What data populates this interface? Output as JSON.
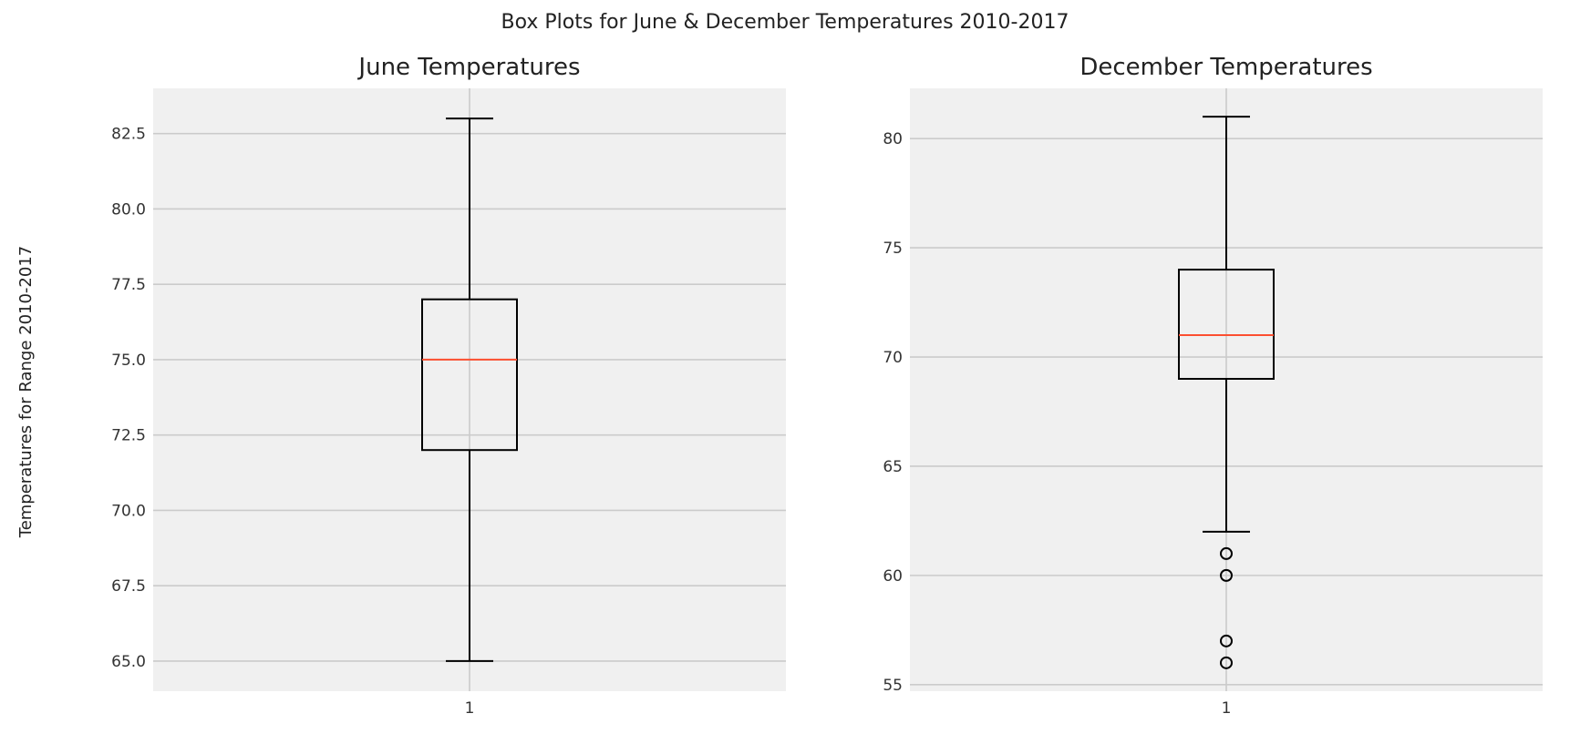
{
  "figure": {
    "suptitle": "Box Plots for June & December Temperatures 2010-2017",
    "ylabel": "Temperatures for Range 2010-2017"
  },
  "colors": {
    "panel_background": "#f0f0f0",
    "grid": "#cbcbcb",
    "box": "#000000",
    "median": "#fc4f30"
  },
  "chart_data": [
    {
      "type": "box",
      "title": "June Temperatures",
      "categories": [
        "1"
      ],
      "ylim": [
        64,
        84
      ],
      "yticks": [
        65.0,
        67.5,
        70.0,
        72.5,
        75.0,
        77.5,
        80.0,
        82.5
      ],
      "ytick_labels": [
        "65.0",
        "67.5",
        "70.0",
        "72.5",
        "75.0",
        "77.5",
        "80.0",
        "82.5"
      ],
      "grid": true,
      "boxes": [
        {
          "label": "1",
          "whislo": 65,
          "q1": 72,
          "med": 75,
          "q3": 77,
          "whishi": 83,
          "fliers": []
        }
      ]
    },
    {
      "type": "box",
      "title": "December Temperatures",
      "categories": [
        "1"
      ],
      "ylim": [
        54.7,
        82.3
      ],
      "yticks": [
        55,
        60,
        65,
        70,
        75,
        80
      ],
      "ytick_labels": [
        "55",
        "60",
        "65",
        "70",
        "75",
        "80"
      ],
      "grid": true,
      "boxes": [
        {
          "label": "1",
          "whislo": 62,
          "q1": 69,
          "med": 71,
          "q3": 74,
          "whishi": 81,
          "fliers": [
            61,
            60,
            57,
            56
          ]
        }
      ]
    }
  ]
}
